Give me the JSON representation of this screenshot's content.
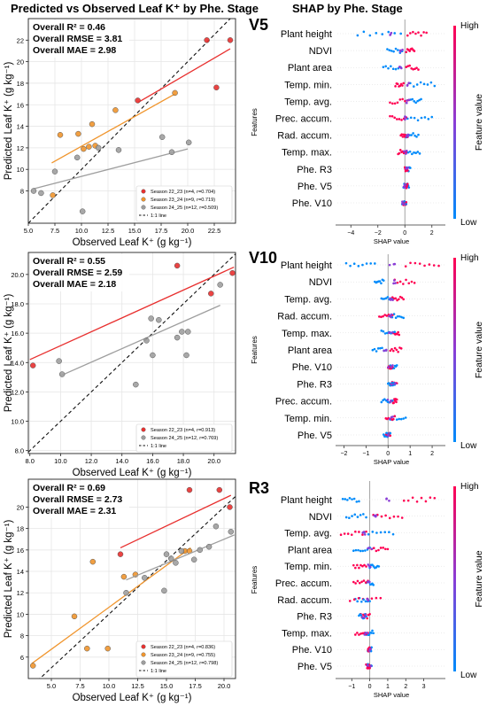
{
  "header": {
    "left_title": "Predicted vs Observed Leaf K⁺ by Phe. Stage",
    "right_title": "SHAP by Phe. Stage"
  },
  "colors": {
    "season_22_23": "#e8302f",
    "season_23_24": "#f0952d",
    "season_24_25": "#9e9e9e",
    "shap_high": "#ff0052",
    "shap_low": "#008bfb"
  },
  "chart_data": [
    {
      "type": "scatter",
      "panel": "V5 scatter",
      "xlabel": "Observed Leaf K⁺ (g kg⁻¹)",
      "ylabel": "Predicted Leaf K⁺ (g kg⁻¹)",
      "xlim": [
        5.0,
        24.5
      ],
      "ylim": [
        5.0,
        24.0
      ],
      "xticks": [
        5.0,
        7.5,
        10.0,
        12.5,
        15.0,
        17.5,
        20.0,
        22.5
      ],
      "xtick_labels": [
        "5.0",
        "7.5",
        "10.0",
        "12.5",
        "15.0",
        "17.5",
        "20.0",
        "22.5"
      ],
      "yticks": [
        8,
        10,
        12,
        14,
        16,
        18,
        20,
        22
      ],
      "ytick_labels": [
        "8",
        "10",
        "12",
        "14",
        "16",
        "18",
        "20",
        "22"
      ],
      "stats": [
        "Overall R² = 0.46",
        "Overall RMSE = 3.81",
        "Overall MAE = 2.98"
      ],
      "legend": [
        "Season 22_23 (n=4, r=0.704)",
        "Season 23_24 (n=9, r=0.719)",
        "Season 24_25 (n=12, r=0.509)",
        "1:1 line"
      ],
      "grid": true,
      "legend_position": "bottom-right",
      "series": [
        {
          "name": "Season 22_23",
          "color": "#e8302f",
          "points": [
            [
              15.3,
              16.4
            ],
            [
              21.8,
              22.0
            ],
            [
              22.7,
              17.6
            ],
            [
              24.0,
              22.0
            ]
          ],
          "fit": [
            [
              15.3,
              16.2
            ],
            [
              24.0,
              21.2
            ]
          ]
        },
        {
          "name": "Season 23_24",
          "color": "#f0952d",
          "points": [
            [
              7.3,
              7.6
            ],
            [
              8.0,
              13.2
            ],
            [
              9.7,
              13.3
            ],
            [
              10.2,
              11.9
            ],
            [
              10.7,
              12.1
            ],
            [
              11.0,
              14.2
            ],
            [
              11.3,
              12.2
            ],
            [
              13.2,
              15.5
            ],
            [
              18.8,
              17.1
            ]
          ],
          "fit": [
            [
              7.2,
              10.6
            ],
            [
              18.8,
              17.0
            ]
          ]
        },
        {
          "name": "Season 24_25",
          "color": "#9e9e9e",
          "points": [
            [
              5.5,
              8.0
            ],
            [
              6.2,
              7.8
            ],
            [
              7.5,
              9.8
            ],
            [
              9.6,
              11.1
            ],
            [
              10.1,
              6.1
            ],
            [
              11.6,
              12.0
            ],
            [
              13.5,
              11.8
            ],
            [
              15.9,
              7.9
            ],
            [
              17.6,
              13.0
            ],
            [
              18.6,
              7.9
            ],
            [
              18.5,
              11.6
            ],
            [
              20.1,
              12.5
            ]
          ],
          "fit": [
            [
              5.5,
              8.2
            ],
            [
              20.0,
              11.9
            ]
          ]
        }
      ]
    },
    {
      "type": "scatter",
      "panel": "V10 scatter",
      "xlabel": "Observed Leaf K⁺ (g kg⁻¹)",
      "ylabel": "Predicted Leaf K⁺ (g kg⁻¹)",
      "xlim": [
        7.9,
        21.4
      ],
      "ylim": [
        7.8,
        21.5
      ],
      "xticks": [
        8,
        10,
        12,
        14,
        16,
        18,
        20
      ],
      "xtick_labels": [
        "8.0",
        "10.0",
        "12.0",
        "14.0",
        "16.0",
        "18.0",
        "20.0"
      ],
      "yticks": [
        8,
        10,
        12,
        14,
        16,
        18,
        20
      ],
      "ytick_labels": [
        "8.0",
        "10.0",
        "12.0",
        "14.0",
        "16.0",
        "18.0",
        "20.0"
      ],
      "stats": [
        "Overall R² = 0.55",
        "Overall RMSE = 2.59",
        "Overall MAE = 2.18"
      ],
      "legend": [
        "Season 22_23 (n=4, r=0.913)",
        "Season 24_25 (n=12, r=0.769)",
        "1:1 line"
      ],
      "grid": true,
      "legend_position": "bottom-right",
      "series": [
        {
          "name": "Season 22_23",
          "color": "#e8302f",
          "points": [
            [
              8.2,
              13.8
            ],
            [
              17.6,
              20.6
            ],
            [
              19.8,
              18.7
            ],
            [
              21.2,
              20.1
            ]
          ],
          "fit": [
            [
              8.0,
              14.2
            ],
            [
              21.3,
              20.5
            ]
          ]
        },
        {
          "name": "Season 24_25",
          "color": "#9e9e9e",
          "points": [
            [
              9.9,
              14.1
            ],
            [
              10.1,
              13.2
            ],
            [
              14.9,
              12.5
            ],
            [
              15.6,
              15.5
            ],
            [
              15.9,
              17.0
            ],
            [
              16.0,
              14.5
            ],
            [
              16.4,
              16.9
            ],
            [
              17.6,
              15.7
            ],
            [
              17.9,
              16.1
            ],
            [
              18.2,
              14.5
            ],
            [
              18.3,
              16.1
            ],
            [
              20.4,
              19.3
            ]
          ],
          "fit": [
            [
              10.0,
              13.1
            ],
            [
              20.4,
              17.9
            ]
          ]
        }
      ]
    },
    {
      "type": "scatter",
      "panel": "R3 scatter",
      "xlabel": "Observed Leaf K⁺ (g kg⁻¹)",
      "ylabel": "Predicted Leaf K⁺ (g kg⁻¹)",
      "xlim": [
        3.0,
        21.0
      ],
      "ylim": [
        4.0,
        22.6
      ],
      "xticks": [
        5.0,
        7.5,
        10.0,
        12.5,
        15.0,
        17.5,
        20.0
      ],
      "xtick_labels": [
        "5.0",
        "7.5",
        "10.0",
        "12.5",
        "15.0",
        "17.5",
        "20.0"
      ],
      "yticks": [
        6,
        8,
        10,
        12,
        14,
        16,
        18,
        20
      ],
      "ytick_labels": [
        "6",
        "8",
        "10",
        "12",
        "14",
        "16",
        "18",
        "20"
      ],
      "stats": [
        "Overall R² = 0.69",
        "Overall RMSE = 2.73",
        "Overall MAE = 2.31"
      ],
      "legend": [
        "Season 22_23 (n=4, r=0.836)",
        "Season 23_24 (n=9, r=0.755)",
        "Season 24_25 (n=12, r=0.798)",
        "1:1 line"
      ],
      "grid": true,
      "legend_position": "bottom-right",
      "series": [
        {
          "name": "Season 22_23",
          "color": "#e8302f",
          "points": [
            [
              11.0,
              15.6
            ],
            [
              17.0,
              21.6
            ],
            [
              19.6,
              21.6
            ],
            [
              20.5,
              20.0
            ]
          ],
          "fit": [
            [
              11.0,
              16.2
            ],
            [
              20.6,
              21.1
            ]
          ]
        },
        {
          "name": "Season 23_24",
          "color": "#f0952d",
          "points": [
            [
              3.4,
              5.2
            ],
            [
              7.0,
              9.8
            ],
            [
              8.1,
              6.8
            ],
            [
              8.6,
              14.9
            ],
            [
              9.9,
              6.8
            ],
            [
              11.3,
              13.5
            ],
            [
              12.3,
              13.7
            ],
            [
              16.6,
              15.9
            ],
            [
              17.0,
              15.9
            ]
          ],
          "fit": [
            [
              3.3,
              5.4
            ],
            [
              17.1,
              16.2
            ]
          ]
        },
        {
          "name": "Season 24_25",
          "color": "#9e9e9e",
          "points": [
            [
              11.5,
              12.0
            ],
            [
              13.1,
              13.4
            ],
            [
              14.8,
              12.2
            ],
            [
              15.0,
              15.6
            ],
            [
              15.4,
              15.2
            ],
            [
              15.8,
              14.8
            ],
            [
              16.3,
              15.9
            ],
            [
              17.4,
              15.1
            ],
            [
              17.9,
              16.0
            ],
            [
              18.7,
              16.3
            ],
            [
              19.3,
              18.2
            ],
            [
              20.6,
              17.7
            ]
          ],
          "fit": [
            [
              11.5,
              13.2
            ],
            [
              20.9,
              17.4
            ]
          ]
        }
      ]
    },
    {
      "type": "scatter",
      "panel": "V5 SHAP beeswarm",
      "stage_label": "V5",
      "xlabel": "SHAP value",
      "ylabel": "Features",
      "xlim": [
        -5.0,
        3.0
      ],
      "xticks": [
        -4,
        -2,
        0,
        2
      ],
      "xtick_labels": [
        "−4",
        "−2",
        "0",
        "2"
      ],
      "colorbar": {
        "label": "Feature value",
        "high": "High",
        "low": "Low"
      },
      "features": [
        {
          "name": "Plant height",
          "low_min": -3.5,
          "low_max": -0.3,
          "high_min": 0.2,
          "high_max": 1.6
        },
        {
          "name": "NDVI",
          "low_min": -1.3,
          "low_max": -0.2,
          "high_min": 0.1,
          "high_max": 0.7
        },
        {
          "name": "Plant area",
          "low_min": -1.6,
          "low_max": -0.3,
          "high_min": 0.1,
          "high_max": 1.0
        },
        {
          "name": "Temp. min.",
          "low_min": 0.4,
          "low_max": 2.2,
          "high_min": -0.7,
          "high_max": -0.1
        },
        {
          "name": "Temp. avg.",
          "low_min": 0.3,
          "low_max": 1.2,
          "high_min": -1.1,
          "high_max": 0.2
        },
        {
          "name": "Prec. accum.",
          "low_min": 0.2,
          "low_max": 2.0,
          "high_min": -1.1,
          "high_max": 0.1
        },
        {
          "name": "Rad. accum.",
          "low_min": 0.1,
          "low_max": 1.0,
          "high_min": -0.3,
          "high_max": 0.2
        },
        {
          "name": "Temp. max.",
          "low_min": 0.1,
          "low_max": 1.1,
          "high_min": -0.5,
          "high_max": 0.1
        },
        {
          "name": "Phe. R3",
          "low_min": 0.1,
          "low_max": 0.4,
          "high_min": 0.0,
          "high_max": 0.2
        },
        {
          "name": "Phe. V5",
          "low_min": -0.1,
          "low_max": 0.3,
          "high_min": 0.0,
          "high_max": 0.2
        },
        {
          "name": "Phe. V10",
          "low_min": -0.2,
          "low_max": 0.1,
          "high_min": -0.1,
          "high_max": 0.1
        }
      ]
    },
    {
      "type": "scatter",
      "panel": "V10 SHAP beeswarm",
      "stage_label": "V10",
      "xlabel": "SHAP value",
      "ylabel": "Features",
      "xlim": [
        -2.3,
        2.6
      ],
      "xticks": [
        -2,
        -1,
        0,
        1,
        2
      ],
      "xtick_labels": [
        "−2",
        "−1",
        "0",
        "1",
        "2"
      ],
      "colorbar": {
        "label": "Feature value",
        "high": "High",
        "low": "Low"
      },
      "features": [
        {
          "name": "Plant height",
          "low_min": -1.9,
          "low_max": -0.6,
          "high_min": 0.8,
          "high_max": 2.3
        },
        {
          "name": "NDVI",
          "low_min": -0.6,
          "low_max": -0.2,
          "high_min": 0.3,
          "high_max": 1.2
        },
        {
          "name": "Temp. avg.",
          "low_min": -0.3,
          "low_max": 0.2,
          "high_min": 0.2,
          "high_max": 0.7
        },
        {
          "name": "Rad. accum.",
          "low_min": 0.1,
          "low_max": 0.7,
          "high_min": -0.4,
          "high_max": 0.2
        },
        {
          "name": "Temp. max.",
          "low_min": -0.3,
          "low_max": 0.3,
          "high_min": 0.2,
          "high_max": 0.5
        },
        {
          "name": "Plant area",
          "low_min": -0.7,
          "low_max": -0.1,
          "high_min": 0.1,
          "high_max": 0.6
        },
        {
          "name": "Phe. V10",
          "low_min": 0.1,
          "low_max": 0.4,
          "high_min": 0.0,
          "high_max": 0.2
        },
        {
          "name": "Phe. R3",
          "low_min": 0.0,
          "low_max": 0.3,
          "high_min": 0.1,
          "high_max": 0.4
        },
        {
          "name": "Prec. accum.",
          "low_min": -0.3,
          "low_max": 0.2,
          "high_min": 0.2,
          "high_max": 0.4
        },
        {
          "name": "Temp. min.",
          "low_min": 0.1,
          "low_max": 0.8,
          "high_min": -0.1,
          "high_max": 0.3
        },
        {
          "name": "Phe. V5",
          "low_min": -0.2,
          "low_max": 0.1,
          "high_min": -0.1,
          "high_max": 0.1
        }
      ]
    },
    {
      "type": "scatter",
      "panel": "R3 SHAP beeswarm",
      "stage_label": "R3",
      "xlabel": "SHAP value",
      "ylabel": "Features",
      "xlim": [
        -1.8,
        4.2
      ],
      "xticks": [
        -1,
        0,
        1,
        2,
        3
      ],
      "xtick_labels": [
        "−1",
        "0",
        "1",
        "2",
        "3"
      ],
      "colorbar": {
        "label": "Feature value",
        "high": "High",
        "low": "Low"
      },
      "features": [
        {
          "name": "Plant height",
          "low_min": -1.5,
          "low_max": -0.6,
          "high_min": 1.9,
          "high_max": 3.6
        },
        {
          "name": "NDVI",
          "low_min": -1.3,
          "low_max": -0.2,
          "high_min": 0.2,
          "high_max": 1.8
        },
        {
          "name": "Temp. avg.",
          "low_min": -0.3,
          "low_max": 1.3,
          "high_min": -1.6,
          "high_max": -0.2
        },
        {
          "name": "Plant area",
          "low_min": -0.9,
          "low_max": 0.0,
          "high_min": 0.1,
          "high_max": 1.0
        },
        {
          "name": "Temp. min.",
          "low_min": 0.0,
          "low_max": 0.5,
          "high_min": -0.9,
          "high_max": -0.2
        },
        {
          "name": "Prec. accum.",
          "low_min": -0.2,
          "low_max": 0.2,
          "high_min": -0.9,
          "high_max": -0.1
        },
        {
          "name": "Rad. accum.",
          "low_min": -0.8,
          "low_max": 0.0,
          "high_min": -1.1,
          "high_max": 0.6
        },
        {
          "name": "Phe. R3",
          "low_min": -0.6,
          "low_max": -0.2,
          "high_min": -0.5,
          "high_max": 0.0
        },
        {
          "name": "Temp. max.",
          "low_min": -0.2,
          "low_max": 0.2,
          "high_min": -0.8,
          "high_max": -0.1
        },
        {
          "name": "Phe. V10",
          "low_min": -0.1,
          "low_max": 0.1,
          "high_min": -0.1,
          "high_max": 0.0
        },
        {
          "name": "Phe. V5",
          "low_min": -0.1,
          "low_max": 0.1,
          "high_min": -0.2,
          "high_max": 0.0
        }
      ]
    }
  ]
}
